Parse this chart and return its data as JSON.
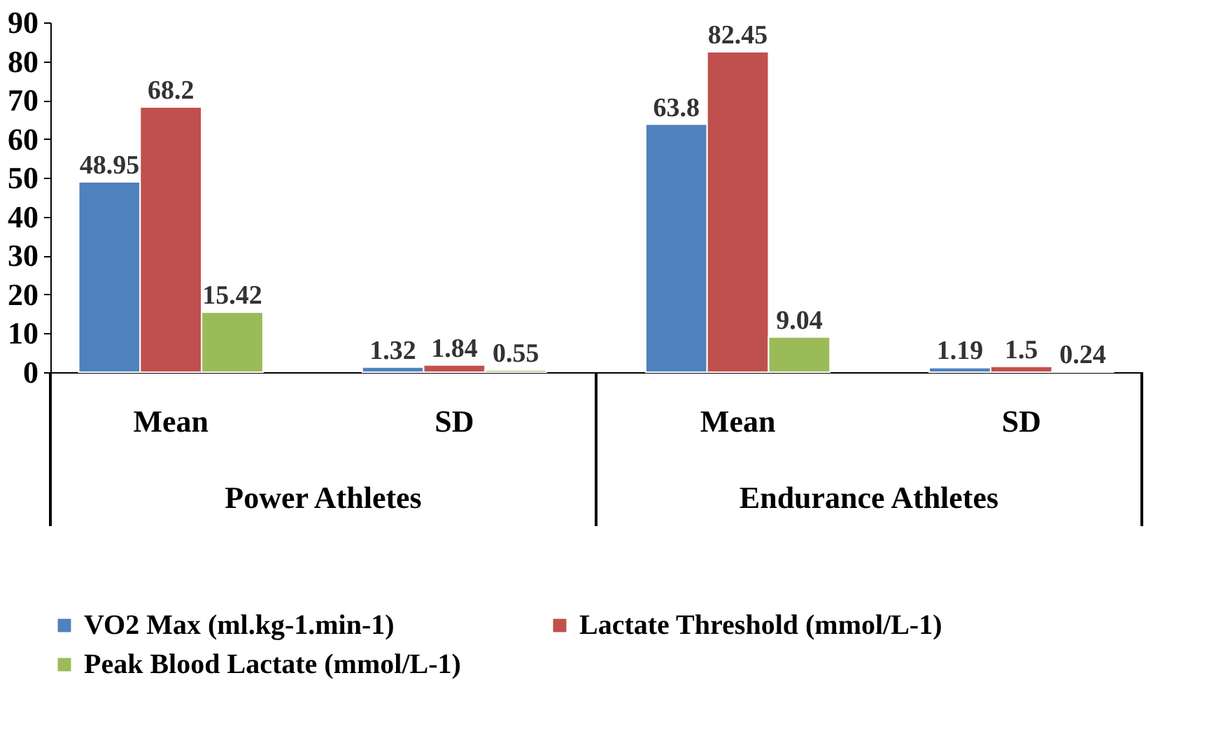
{
  "chart_data": {
    "type": "bar",
    "categories": [
      "Mean",
      "SD",
      "Mean",
      "SD"
    ],
    "series": [
      {
        "name": "VO2 Max (ml.kg-1.min-1)",
        "color": "#4f81bd",
        "values": [
          48.95,
          1.32,
          63.8,
          1.19
        ]
      },
      {
        "name": "Lactate Threshold (mmol/L-1)",
        "color": "#c0504d",
        "values": [
          68.2,
          1.84,
          82.45,
          1.5
        ]
      },
      {
        "name": "Peak Blood Lactate (mmol/L-1)",
        "color": "#9bbb59",
        "values": [
          15.42,
          0.55,
          9.04,
          0.24
        ]
      }
    ],
    "annotations": [
      "Power Athletes",
      "Endurance Athletes"
    ],
    "ylim": [
      0,
      90
    ],
    "yticks": [
      0,
      10,
      20,
      30,
      40,
      50,
      60,
      70,
      80,
      90
    ],
    "data_labels": true,
    "grid": false,
    "legend": "bottom"
  }
}
